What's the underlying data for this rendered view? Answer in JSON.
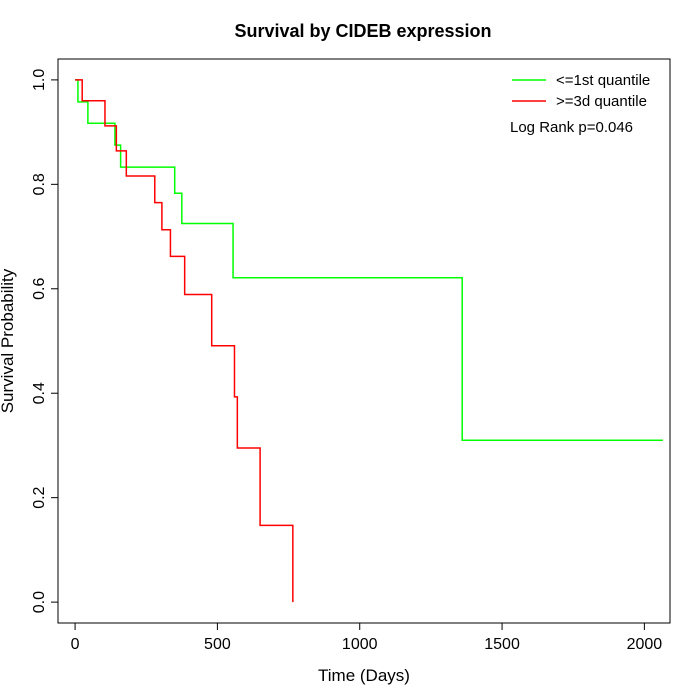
{
  "chart_data": {
    "type": "line",
    "title": "Survival by CIDEB expression",
    "xlabel": "Time (Days)",
    "ylabel": "Survival Probability",
    "xlim": [
      -60,
      2090
    ],
    "ylim": [
      -0.04,
      1.04
    ],
    "xticks": [
      0,
      500,
      1000,
      1500,
      2000
    ],
    "xtick_labels": [
      "0",
      "500",
      "1000",
      "1500",
      "2000"
    ],
    "yticks": [
      0.0,
      0.2,
      0.4,
      0.6,
      0.8,
      1.0
    ],
    "ytick_labels": [
      "0.0",
      "0.2",
      "0.4",
      "0.6",
      "0.8",
      "1.0"
    ],
    "grid": false,
    "legend_position": "top-right",
    "annotation": "Log Rank p=0.046",
    "series": [
      {
        "name": "<=1st quantile",
        "color": "#00ff00",
        "step": true,
        "points": [
          [
            0,
            1.0
          ],
          [
            10,
            0.958
          ],
          [
            45,
            0.917
          ],
          [
            140,
            0.875
          ],
          [
            160,
            0.833
          ],
          [
            350,
            0.783
          ],
          [
            375,
            0.725
          ],
          [
            555,
            0.621
          ],
          [
            1360,
            0.31
          ],
          [
            2065,
            0.31
          ]
        ]
      },
      {
        "name": ">=3d quantile",
        "color": "#ff0000",
        "step": true,
        "points": [
          [
            0,
            1.0
          ],
          [
            25,
            0.96
          ],
          [
            105,
            0.912
          ],
          [
            145,
            0.864
          ],
          [
            180,
            0.816
          ],
          [
            280,
            0.765
          ],
          [
            305,
            0.713
          ],
          [
            335,
            0.662
          ],
          [
            385,
            0.589
          ],
          [
            480,
            0.491
          ],
          [
            560,
            0.393
          ],
          [
            570,
            0.295
          ],
          [
            650,
            0.147
          ],
          [
            765,
            0.147
          ],
          [
            765,
            0.0
          ]
        ]
      }
    ]
  }
}
